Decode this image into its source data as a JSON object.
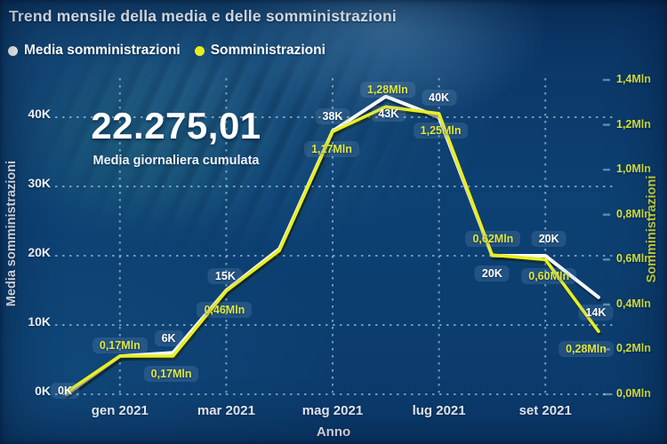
{
  "header": {
    "title": "Trend mensile della media e delle somministrazioni",
    "legend": [
      {
        "label": "Media somministrazioni",
        "color": "#ffffff"
      },
      {
        "label": "Somministrazioni",
        "color": "#e9ef22"
      }
    ]
  },
  "stat": {
    "value": "22.275,01",
    "caption": "Media giornaliera cumulata"
  },
  "colors": {
    "background": "#0c3a6b",
    "gridline": "#b9d4ec",
    "white_series": "#f5f9ff",
    "yellow_series": "#e9ef22",
    "yellow_text": "#d9e53c"
  },
  "chart_data": {
    "type": "line",
    "title": "Trend mensile della media e delle somministrazioni",
    "x_axis": {
      "title": "Anno",
      "tick_labels": [
        "gen 2021",
        "mar 2021",
        "mag 2021",
        "lug 2021",
        "set 2021"
      ],
      "tick_point_indices": [
        1,
        3,
        5,
        7,
        9
      ],
      "n_points": 11
    },
    "left_axis": {
      "title": "Media somministrazioni",
      "ticks": [
        "0K",
        "10K",
        "20K",
        "30K",
        "40K"
      ],
      "tick_values": [
        0,
        10,
        20,
        30,
        40
      ],
      "range": [
        0,
        40
      ],
      "color": "#f4f8fd"
    },
    "right_axis": {
      "title": "Somministrazioni",
      "ticks": [
        "0,0Mln",
        "0,2Mln",
        "0,4Mln",
        "0,6Mln",
        "0,8Mln",
        "1,0Mln",
        "1,2Mln",
        "1,4Mln"
      ],
      "tick_values": [
        0,
        0.2,
        0.4,
        0.6,
        0.8,
        1.0,
        1.2,
        1.4
      ],
      "range": [
        0,
        1.4
      ],
      "color": "#d9e53c"
    },
    "grid": "dashed",
    "series": [
      {
        "name": "Media somministrazioni",
        "axis": "left",
        "unit": "K",
        "color": "#f5f9ff",
        "label_color": "#ffffff",
        "values": [
          0,
          5.5,
          6,
          15,
          21,
          38,
          43,
          40,
          20,
          20,
          14
        ],
        "point_labels": [
          "0K",
          null,
          "6K",
          "15K",
          null,
          "38K",
          "43K",
          "40K",
          "20K",
          "20K",
          "14K"
        ]
      },
      {
        "name": "Somministrazioni",
        "axis": "right",
        "unit": "Mln",
        "color": "#e9ef22",
        "label_color": "#dde73c",
        "values": [
          0.01,
          0.17,
          0.17,
          0.46,
          0.64,
          1.17,
          1.28,
          1.25,
          0.62,
          0.6,
          0.28
        ],
        "point_labels": [
          null,
          "0,17Mln",
          "0,17Mln",
          "0,46Mln",
          null,
          "1,17Mln",
          "1,28Mln",
          "1,25Mln",
          "0,62Mln",
          "0,60Mln",
          "0,28Mln"
        ]
      }
    ]
  }
}
